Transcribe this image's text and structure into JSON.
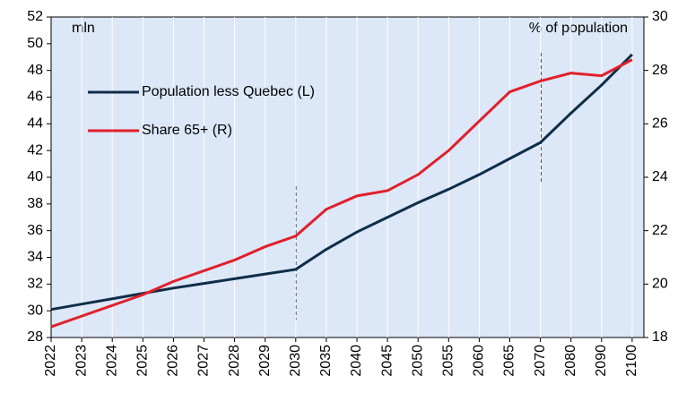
{
  "chart_data": {
    "type": "line",
    "categories": [
      "2022",
      "2023",
      "2024",
      "2025",
      "2026",
      "2027",
      "2028",
      "2029",
      "2030",
      "2035",
      "2040",
      "2045",
      "2050",
      "2055",
      "2060",
      "2065",
      "2070",
      "2080",
      "2090",
      "2100"
    ],
    "series": [
      {
        "name": "Population less Quebec (L)",
        "color": "#0f2d48",
        "values": [
          30.1,
          30.5,
          30.9,
          31.3,
          31.7,
          32.05,
          32.4,
          32.75,
          33.1,
          34.6,
          35.9,
          37.0,
          38.1,
          39.1,
          40.2,
          41.4,
          42.6,
          44.8,
          46.9,
          49.2
        ]
      },
      {
        "name": "Share 65+ (R)",
        "color": "#e0202a",
        "axis": "y2",
        "values": [
          18.4,
          18.8,
          19.2,
          19.6,
          20.1,
          20.5,
          20.9,
          21.4,
          21.8,
          22.8,
          23.3,
          23.5,
          24.1,
          25.0,
          26.1,
          27.2,
          27.6,
          27.9,
          27.8,
          28.4
        ]
      }
    ],
    "ylabel": "mln",
    "y2label": "% of population",
    "ylim": [
      28,
      52
    ],
    "yticks": [
      28,
      30,
      32,
      34,
      36,
      38,
      40,
      42,
      44,
      46,
      48,
      50,
      52
    ],
    "y2lim": [
      18,
      30
    ],
    "y2ticks": [
      18,
      20,
      22,
      24,
      26,
      28,
      30
    ],
    "grid": true,
    "legend": "upper left"
  }
}
